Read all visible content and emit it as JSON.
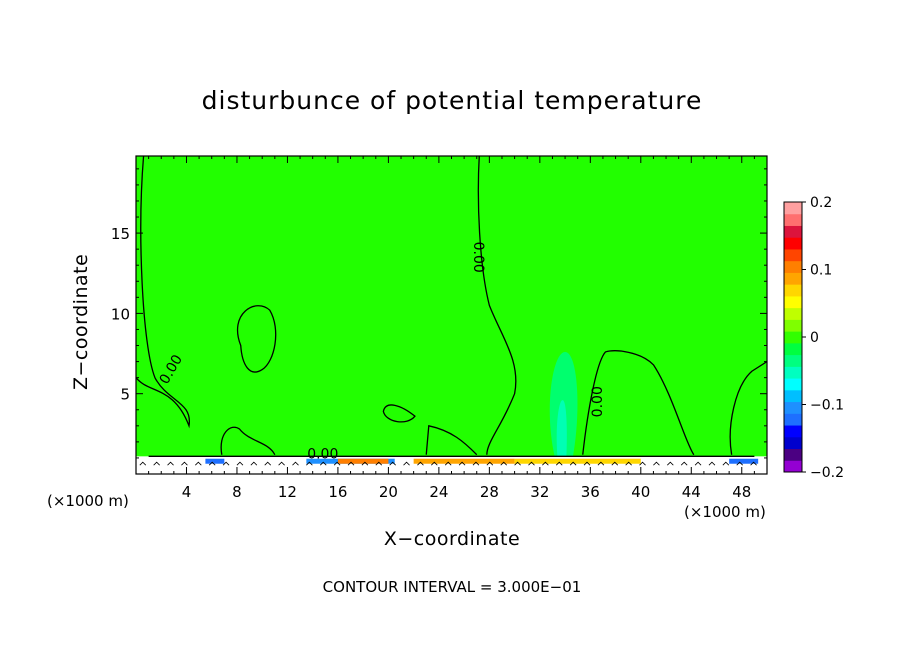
{
  "chart_data": {
    "type": "heatmap",
    "title": "disturbunce of potential temperature",
    "xlabel": "X−coordinate",
    "ylabel": "Z−coordinate",
    "x_unit": "(×1000 m)",
    "x_ticks": [
      4,
      8,
      12,
      16,
      20,
      24,
      28,
      32,
      36,
      40,
      44,
      48
    ],
    "y_ticks": [
      5,
      10,
      15
    ],
    "xlim": [
      0,
      50
    ],
    "ylim": [
      0,
      19.8
    ],
    "contour_interval_label": "CONTOUR INTERVAL = 3.000E−01",
    "contour_labels": [
      "0.00",
      "0.00",
      "0.00",
      "0.00"
    ],
    "colorbar": {
      "ticks": [
        "0.2",
        "0.1",
        "0",
        "−0.1",
        "−0.2"
      ],
      "range": [
        -0.2,
        0.2
      ],
      "colors": [
        "#9400d3",
        "#4b0082",
        "#0000cd",
        "#0000ff",
        "#1e6fff",
        "#1e90ff",
        "#00bfff",
        "#00ffff",
        "#00ffc0",
        "#00ff7f",
        "#00ff40",
        "#32ff00",
        "#7fff00",
        "#bfff00",
        "#ffff00",
        "#ffd700",
        "#ffa500",
        "#ff7f00",
        "#ff4500",
        "#ff0000",
        "#dc143c",
        "#ff6f6f",
        "#ffa0a0"
      ]
    }
  }
}
